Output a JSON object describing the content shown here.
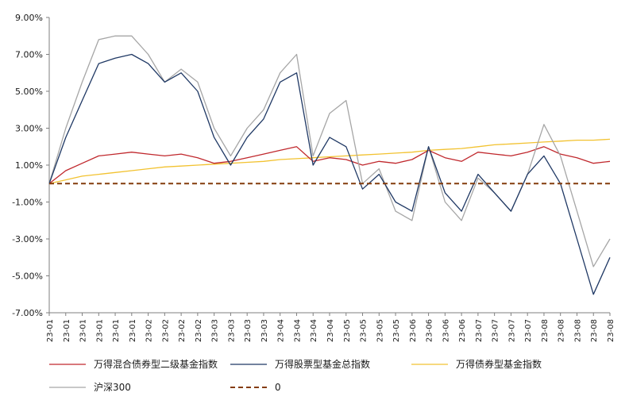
{
  "chart_data": {
    "type": "line",
    "title": "",
    "xlabel": "",
    "ylabel": "",
    "ylim": [
      -7,
      9
    ],
    "y_ticks": [
      "9.00%",
      "7.00%",
      "5.00%",
      "3.00%",
      "1.00%",
      "-1.00%",
      "-3.00%",
      "-5.00%",
      "-7.00%"
    ],
    "y_tick_values": [
      9,
      7,
      5,
      3,
      1,
      -1,
      -3,
      -5,
      -7
    ],
    "categories": [
      "23-01",
      "23-01",
      "23-01",
      "23-01",
      "23-01",
      "23-01",
      "23-02",
      "23-02",
      "23-02",
      "23-02",
      "23-03",
      "23-03",
      "23-03",
      "23-03",
      "23-04",
      "23-04",
      "23-04",
      "23-04",
      "23-05",
      "23-05",
      "23-05",
      "23-05",
      "23-06",
      "23-06",
      "23-06",
      "23-06",
      "23-07",
      "23-07",
      "23-07",
      "23-07",
      "23-08",
      "23-08",
      "23-08",
      "23-08",
      "23-08"
    ],
    "grid": false,
    "legend_position": "bottom",
    "series": [
      {
        "name": "万得混合债券型二级基金指数",
        "color": "#c0282d",
        "style": "solid",
        "values": [
          0.0,
          0.7,
          1.1,
          1.5,
          1.6,
          1.7,
          1.6,
          1.5,
          1.6,
          1.4,
          1.1,
          1.2,
          1.4,
          1.6,
          1.8,
          2.0,
          1.2,
          1.4,
          1.3,
          1.0,
          1.2,
          1.1,
          1.3,
          1.8,
          1.4,
          1.2,
          1.7,
          1.6,
          1.5,
          1.7,
          2.0,
          1.6,
          1.4,
          1.1,
          1.2
        ]
      },
      {
        "name": "万得股票型基金总指数",
        "color": "#1f3864",
        "style": "solid",
        "values": [
          0.0,
          2.5,
          4.5,
          6.5,
          6.8,
          7.0,
          6.5,
          5.5,
          6.0,
          5.0,
          2.5,
          1.0,
          2.5,
          3.5,
          5.5,
          6.0,
          1.0,
          2.5,
          2.0,
          -0.3,
          0.5,
          -1.0,
          -1.5,
          2.0,
          -0.5,
          -1.5,
          0.5,
          -0.5,
          -1.5,
          0.5,
          1.5,
          0.0,
          -3.0,
          -6.0,
          -4.0
        ]
      },
      {
        "name": "万得债券型基金指数",
        "color": "#f2c230",
        "style": "solid",
        "values": [
          0.0,
          0.2,
          0.4,
          0.5,
          0.6,
          0.7,
          0.8,
          0.9,
          0.95,
          1.0,
          1.05,
          1.1,
          1.15,
          1.2,
          1.3,
          1.35,
          1.4,
          1.45,
          1.5,
          1.55,
          1.6,
          1.65,
          1.7,
          1.8,
          1.85,
          1.9,
          2.0,
          2.1,
          2.15,
          2.2,
          2.25,
          2.3,
          2.35,
          2.35,
          2.4
        ]
      },
      {
        "name": "沪深300",
        "color": "#a6a6a6",
        "style": "solid",
        "values": [
          0.0,
          3.0,
          5.5,
          7.8,
          8.0,
          8.0,
          7.0,
          5.5,
          6.2,
          5.5,
          3.0,
          1.5,
          3.0,
          4.0,
          6.0,
          7.0,
          1.5,
          3.8,
          4.5,
          0.0,
          0.8,
          -1.5,
          -2.0,
          2.0,
          -1.0,
          -2.0,
          0.3,
          -0.5,
          -1.5,
          0.5,
          3.2,
          1.5,
          -1.5,
          -4.5,
          -3.0
        ]
      },
      {
        "name": "0",
        "color": "#843c0c",
        "style": "dashed",
        "values": [
          0,
          0,
          0,
          0,
          0,
          0,
          0,
          0,
          0,
          0,
          0,
          0,
          0,
          0,
          0,
          0,
          0,
          0,
          0,
          0,
          0,
          0,
          0,
          0,
          0,
          0,
          0,
          0,
          0,
          0,
          0,
          0,
          0,
          0,
          0
        ]
      }
    ]
  }
}
